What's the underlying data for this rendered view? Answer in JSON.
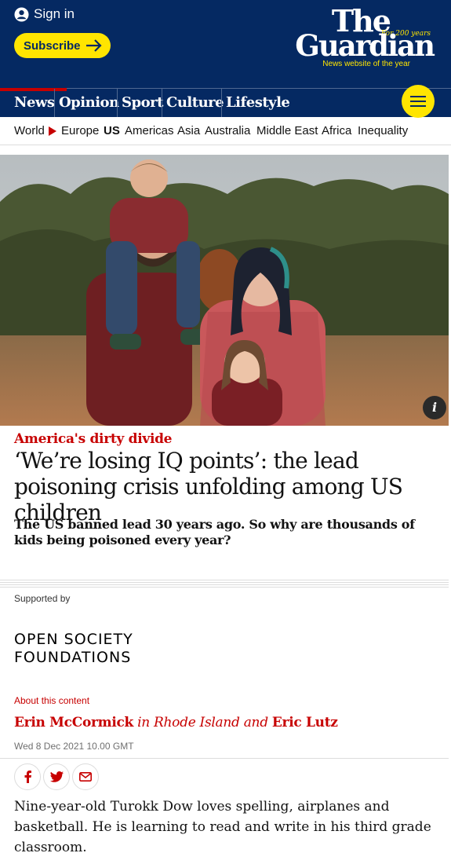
{
  "header": {
    "signin_label": "Sign in",
    "subscribe_label": "Subscribe",
    "logo_the": "The",
    "logo_guardian": "Guardian",
    "logo_for200": "For 200 years",
    "logo_tagline": "News website of the year"
  },
  "pillars": [
    "News",
    "Opinion",
    "Sport",
    "Culture",
    "Lifestyle"
  ],
  "subnav": [
    "World",
    "Europe",
    "US",
    "Americas",
    "Asia",
    "Australia",
    "Middle East",
    "Africa",
    "Inequality"
  ],
  "article": {
    "kicker": "America's dirty divide",
    "headline": "‘We’re losing IQ points’: the lead poisoning crisis unfolding among US children",
    "standfirst": "The US banned lead 30 years ago. So why are thousands of kids being poisoned every year?",
    "supported_by": "Supported by",
    "sponsor_line1": "OPEN SOCIETY",
    "sponsor_line2": "FOUNDATIONS",
    "about": "About this content",
    "author1": "Erin McCormick",
    "byline_mid": "in Rhode Island and",
    "author2": "Eric Lutz",
    "date": "Wed 8 Dec 2021 10.00 GMT",
    "body": "Nine-year-old Turokk Dow loves spelling, airplanes and basketball. He is learning to read and write in his third grade classroom."
  },
  "colors": {
    "brand_blue": "#052962",
    "accent_red": "#c70000",
    "highlight_yellow": "#ffe500"
  },
  "icons": [
    "user-icon",
    "arrow-right-icon",
    "menu-icon",
    "info-icon",
    "facebook-icon",
    "twitter-icon",
    "email-icon"
  ]
}
